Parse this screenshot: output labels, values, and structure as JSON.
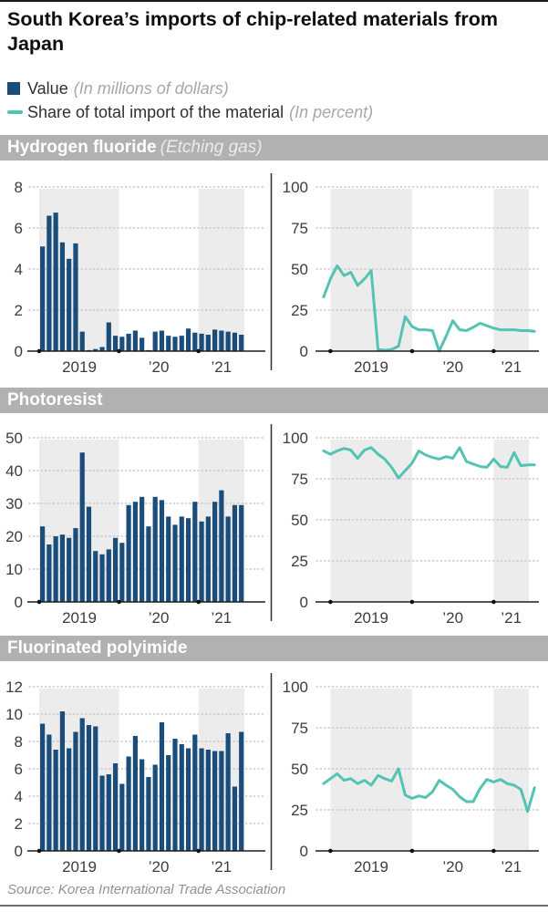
{
  "title": "South Korea’s imports of chip-related materials from Japan",
  "legend": {
    "value_label": "Value",
    "value_unit_note": "(In millions of dollars)",
    "share_label": "Share of total import of the material",
    "share_unit_note": "(In percent)"
  },
  "source": "Source: Korea International Trade Association",
  "colors": {
    "bar": "#1a4d7a",
    "line": "#53c3b3",
    "band": "#ececec",
    "header_bg": "#b1b1b1",
    "grid": "#c8c8c8",
    "axis": "#1c1c1c",
    "divider": "#2e2e2e",
    "tick_label": "#3c3c3c"
  },
  "sections": [
    {
      "header": "Hydrogen fluoride",
      "header_note": "(Etching gas)"
    },
    {
      "header": "Photoresist",
      "header_note": ""
    },
    {
      "header": "Fluorinated polyimide",
      "header_note": ""
    }
  ],
  "chart_data": [
    {
      "id": "hydrogen-fluoride-value",
      "type": "bar",
      "title": "Hydrogen fluoride — Value",
      "ylabel": "In millions of dollars",
      "frequency": "monthly",
      "start": "2019-01",
      "end": "2021-07",
      "ylim": [
        0,
        8
      ],
      "yticks": [
        0,
        2,
        4,
        6,
        8
      ],
      "x_tick_labels": [
        "2019",
        "’20",
        "’21"
      ],
      "shaded_year_bands": [
        "2019",
        "2021"
      ],
      "grid": "dotted",
      "values": [
        5.1,
        6.6,
        6.75,
        5.3,
        4.5,
        5.25,
        0.95,
        0.05,
        0.1,
        0.2,
        1.4,
        0.75,
        0.7,
        0.85,
        1.0,
        0.65,
        0.05,
        0.95,
        1.0,
        0.75,
        0.7,
        0.75,
        1.1,
        0.9,
        0.85,
        0.8,
        1.05,
        1.0,
        0.95,
        0.9,
        0.8
      ]
    },
    {
      "id": "hydrogen-fluoride-share",
      "type": "line",
      "title": "Hydrogen fluoride — Share of total import",
      "ylabel": "In percent",
      "frequency": "monthly",
      "start": "2018-12",
      "end": "2021-07",
      "ylim": [
        0,
        100
      ],
      "yticks": [
        0,
        25,
        50,
        75,
        100
      ],
      "x_tick_labels": [
        "2019",
        "’20",
        "’21"
      ],
      "shaded_year_bands": [
        "2019",
        "2021"
      ],
      "grid": "dotted",
      "values": [
        33,
        44,
        52,
        46,
        48,
        40,
        44,
        49,
        1,
        0.5,
        1,
        3,
        21,
        15,
        13,
        13,
        12.5,
        0,
        9,
        18.5,
        13,
        12.5,
        14.5,
        17,
        15.5,
        14,
        13,
        13,
        13,
        12.5,
        12.5,
        12
      ]
    },
    {
      "id": "photoresist-value",
      "type": "bar",
      "title": "Photoresist — Value",
      "ylabel": "In millions of dollars",
      "frequency": "monthly",
      "start": "2019-01",
      "end": "2021-07",
      "ylim": [
        0,
        50
      ],
      "yticks": [
        0,
        10,
        20,
        30,
        40,
        50
      ],
      "x_tick_labels": [
        "2019",
        "’20",
        "’21"
      ],
      "shaded_year_bands": [
        "2019",
        "2021"
      ],
      "grid": "dotted",
      "values": [
        23,
        17.5,
        20,
        20.5,
        19.5,
        22.5,
        45.5,
        29,
        15.5,
        14.5,
        16,
        19.5,
        18,
        29.5,
        30.5,
        32,
        23,
        32,
        31,
        26,
        23.5,
        26,
        25.5,
        30.5,
        24.5,
        26,
        30.5,
        34,
        26,
        29.5,
        29.5
      ]
    },
    {
      "id": "photoresist-share",
      "type": "line",
      "title": "Photoresist — Share of total import",
      "ylabel": "In percent",
      "frequency": "monthly",
      "start": "2018-12",
      "end": "2021-07",
      "ylim": [
        0,
        100
      ],
      "yticks": [
        0,
        25,
        50,
        75,
        100
      ],
      "x_tick_labels": [
        "2019",
        "’20",
        "’21"
      ],
      "shaded_year_bands": [
        "2019",
        "2021"
      ],
      "grid": "dotted",
      "values": [
        92,
        90,
        92,
        93.5,
        92.5,
        87.5,
        92.5,
        94,
        90,
        87,
        82,
        75.5,
        80,
        84.5,
        92,
        89.5,
        88,
        87,
        88.5,
        87.5,
        94,
        85.5,
        84,
        82.5,
        82,
        87,
        82.5,
        82,
        91,
        83,
        83.5,
        83.5
      ]
    },
    {
      "id": "fluorinated-polyimide-value",
      "type": "bar",
      "title": "Fluorinated polyimide — Value",
      "ylabel": "In millions of dollars",
      "frequency": "monthly",
      "start": "2019-01",
      "end": "2021-07",
      "ylim": [
        0,
        12
      ],
      "yticks": [
        0,
        2,
        4,
        6,
        8,
        10,
        12
      ],
      "x_tick_labels": [
        "2019",
        "’20",
        "’21"
      ],
      "shaded_year_bands": [
        "2019",
        "2021"
      ],
      "grid": "dotted",
      "values": [
        9.3,
        8.5,
        7.4,
        10.2,
        7.5,
        8.7,
        9.7,
        9.2,
        9.1,
        5.5,
        5.6,
        6.4,
        4.9,
        6.9,
        8.4,
        6.7,
        5.4,
        6.3,
        9.4,
        7.0,
        8.2,
        7.8,
        7.5,
        8.5,
        7.5,
        7.4,
        7.3,
        7.3,
        8.6,
        4.7,
        8.7
      ]
    },
    {
      "id": "fluorinated-polyimide-share",
      "type": "line",
      "title": "Fluorinated polyimide — Share of total import",
      "ylabel": "In percent",
      "frequency": "monthly",
      "start": "2018-12",
      "end": "2021-07",
      "ylim": [
        0,
        100
      ],
      "yticks": [
        0,
        25,
        50,
        75,
        100
      ],
      "x_tick_labels": [
        "2019",
        "’20",
        "’21"
      ],
      "shaded_year_bands": [
        "2019",
        "2021"
      ],
      "grid": "dotted",
      "values": [
        41,
        44,
        47,
        43,
        44,
        41,
        43,
        40,
        46,
        44,
        42.5,
        50,
        34,
        32,
        33.5,
        32.5,
        36,
        43,
        40,
        37.5,
        33,
        30,
        30,
        38,
        43.5,
        42,
        43.5,
        41,
        40,
        37.5,
        24,
        38.5
      ]
    }
  ]
}
